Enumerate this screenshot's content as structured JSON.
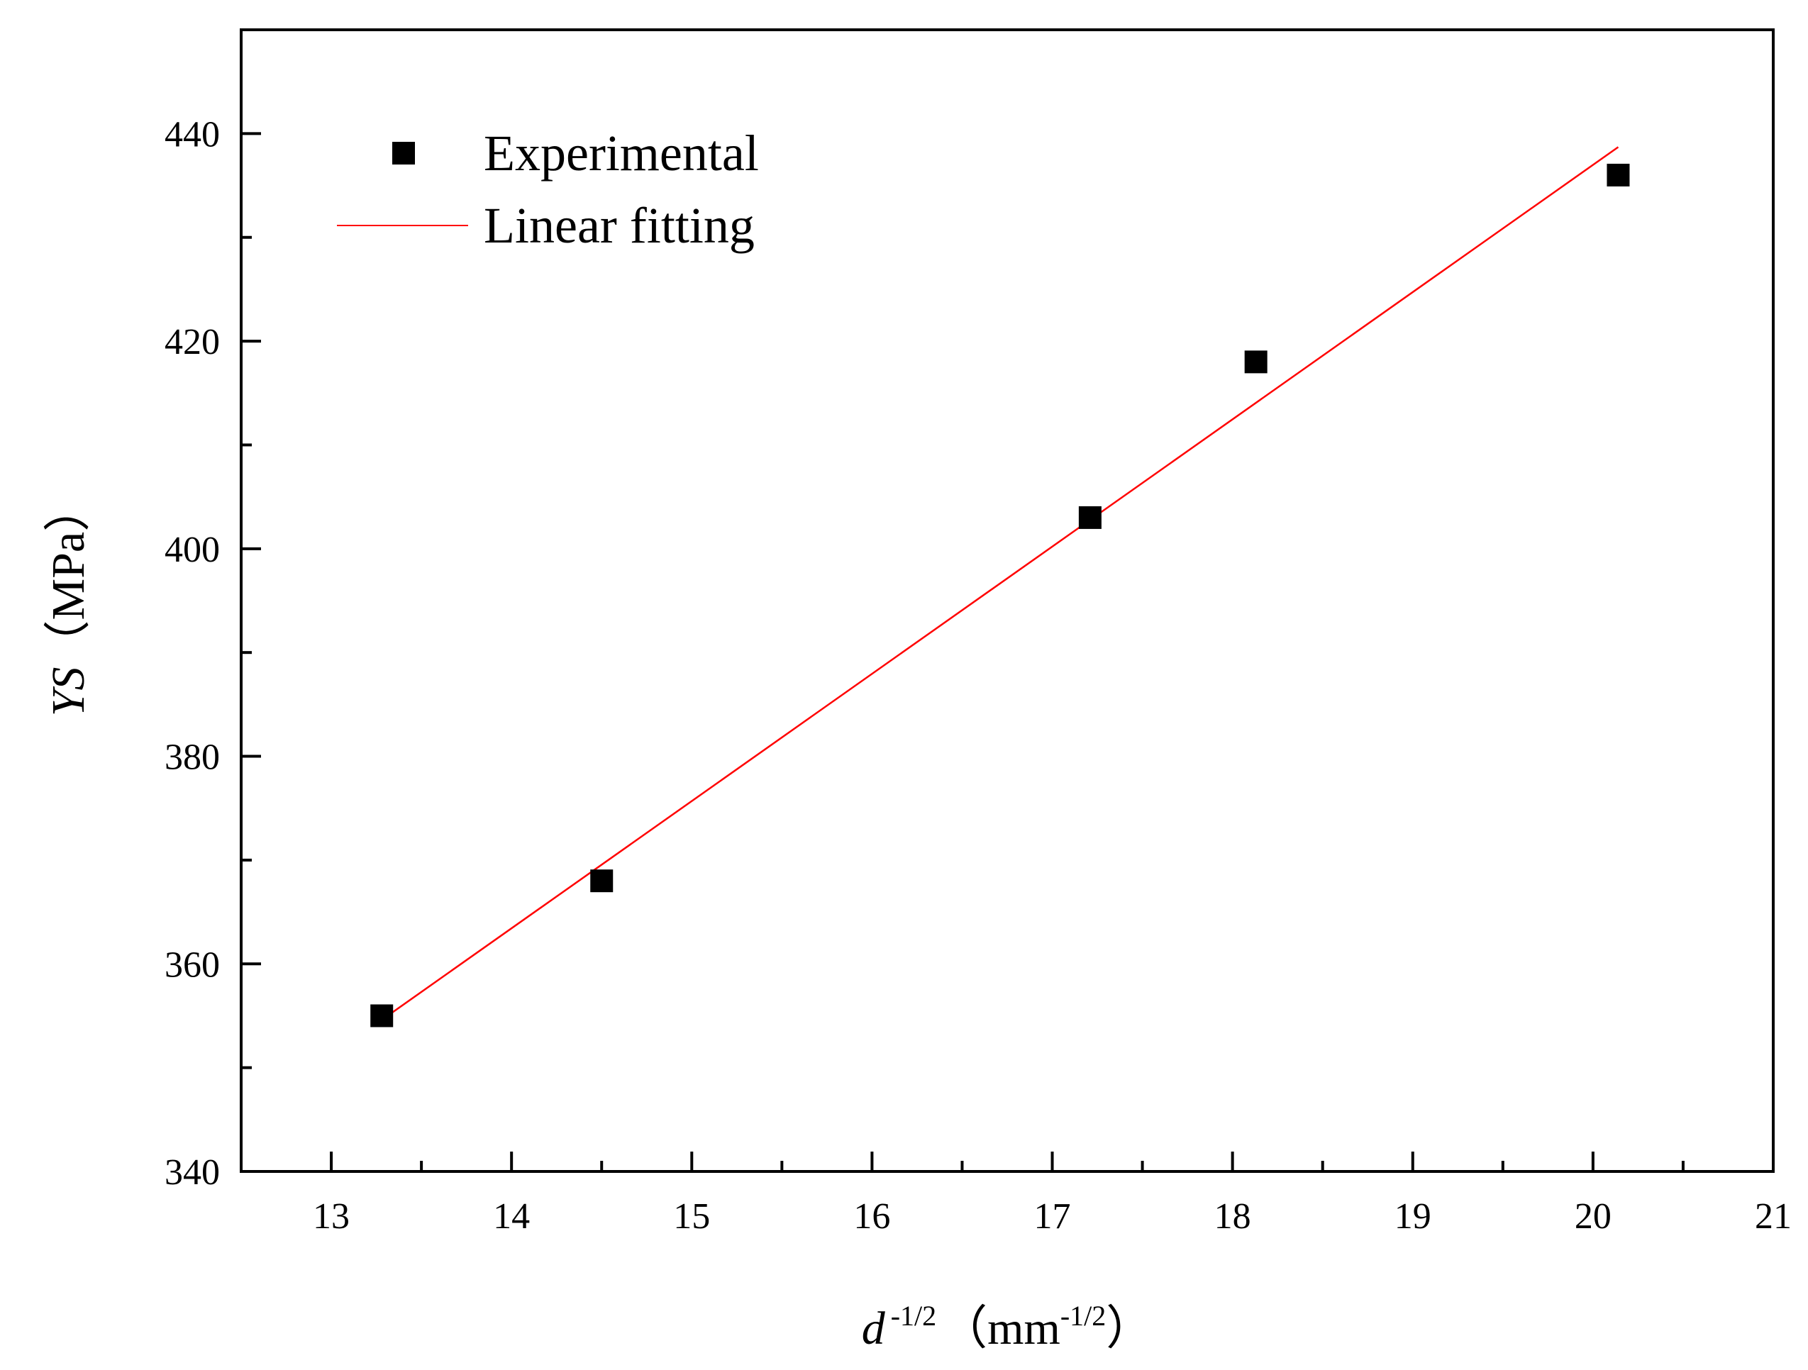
{
  "chart_data": {
    "type": "scatter",
    "title": "",
    "x_axis": {
      "label_var": "d",
      "label_sup": "-1/2",
      "label_unit_open": "（mm",
      "label_unit_sup": "-1/2",
      "label_unit_close": "）",
      "range": [
        12.5,
        21
      ],
      "ticks": [
        13,
        14,
        15,
        16,
        17,
        18,
        19,
        20,
        21
      ],
      "tick_labels": [
        "13",
        "14",
        "15",
        "16",
        "17",
        "18",
        "19",
        "20",
        "21"
      ],
      "minor_ticks": [
        13.5,
        14.5,
        15.5,
        16.5,
        17.5,
        18.5,
        19.5,
        20.5
      ]
    },
    "y_axis": {
      "label_var": "YS",
      "label_unit": "（MPa）",
      "range": [
        340,
        450
      ],
      "ticks": [
        340,
        360,
        380,
        400,
        420,
        440
      ],
      "tick_labels": [
        "340",
        "360",
        "380",
        "400",
        "420",
        "440"
      ],
      "minor_ticks": [
        350,
        370,
        390,
        410,
        430,
        450
      ]
    },
    "series": [
      {
        "name": "Experimental",
        "kind": "scatter",
        "marker": "square",
        "color": "#000000",
        "points": [
          {
            "x": 13.28,
            "y": 355
          },
          {
            "x": 14.5,
            "y": 368
          },
          {
            "x": 17.21,
            "y": 403
          },
          {
            "x": 18.13,
            "y": 418
          },
          {
            "x": 20.14,
            "y": 436
          }
        ]
      },
      {
        "name": "Linear fitting",
        "kind": "line",
        "color": "#ff0000",
        "points": [
          {
            "x": 13.28,
            "y": 354.6
          },
          {
            "x": 20.14,
            "y": 438.7
          }
        ]
      }
    ],
    "legend": {
      "position": "top-left",
      "entries": [
        "Experimental",
        "Linear fitting"
      ]
    }
  }
}
